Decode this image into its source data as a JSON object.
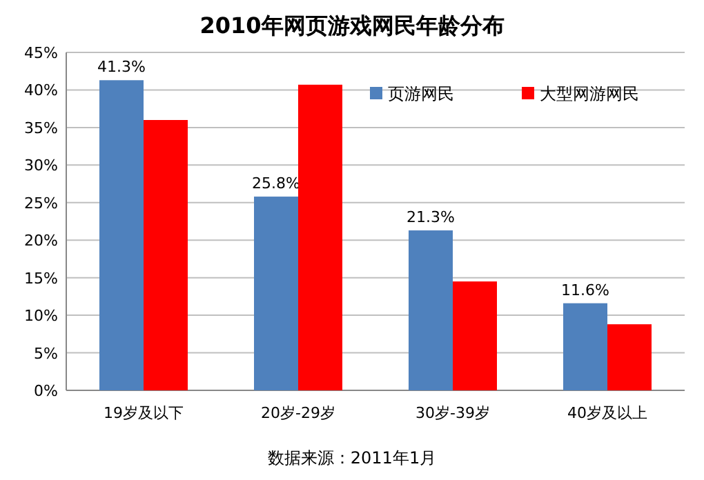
{
  "chart_data": {
    "type": "bar",
    "title": "2010年网页游戏网民年龄分布",
    "categories": [
      "19岁及以下",
      "20岁-29岁",
      "30岁-39岁",
      "40岁及以上"
    ],
    "series": [
      {
        "name": "页游网民",
        "color": "#4f81bd",
        "values": [
          41.3,
          25.8,
          21.3,
          11.6
        ],
        "value_labels": [
          "41.3%",
          "25.8%",
          "21.3%",
          "11.6%"
        ]
      },
      {
        "name": "大型网游网民",
        "color": "#ff0000",
        "values": [
          36,
          40.7,
          14.5,
          8.8
        ]
      }
    ],
    "ylim": [
      0,
      45
    ],
    "yticks": [
      {
        "value": 0,
        "label": "0%"
      },
      {
        "value": 5,
        "label": "5%"
      },
      {
        "value": 10,
        "label": "10%"
      },
      {
        "value": 15,
        "label": "15%"
      },
      {
        "value": 20,
        "label": "20%"
      },
      {
        "value": 25,
        "label": "25%"
      },
      {
        "value": 30,
        "label": "30%"
      },
      {
        "value": 35,
        "label": "35%"
      },
      {
        "value": 40,
        "label": "40%"
      },
      {
        "value": 45,
        "label": "45%"
      }
    ],
    "grid": "y",
    "legend": "top right",
    "annotations": [
      "数据来源：2011年1月"
    ]
  }
}
